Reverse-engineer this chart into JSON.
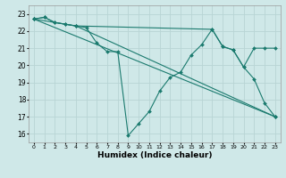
{
  "xlabel": "Humidex (Indice chaleur)",
  "xlim": [
    -0.5,
    23.5
  ],
  "ylim": [
    15.5,
    23.5
  ],
  "yticks": [
    16,
    17,
    18,
    19,
    20,
    21,
    22,
    23
  ],
  "xticks": [
    0,
    1,
    2,
    3,
    4,
    5,
    6,
    7,
    8,
    9,
    10,
    11,
    12,
    13,
    14,
    15,
    16,
    17,
    18,
    19,
    20,
    21,
    22,
    23
  ],
  "bg_color": "#cfe8e8",
  "grid_color": "#b8d4d4",
  "line_color": "#1a7a6e",
  "lines": [
    {
      "x": [
        0,
        1,
        2,
        3,
        4,
        5,
        6,
        7,
        8,
        9,
        10,
        11,
        12,
        13,
        14,
        15,
        16,
        17,
        18,
        19,
        20,
        21,
        22,
        23
      ],
      "y": [
        22.7,
        22.8,
        22.5,
        22.4,
        22.3,
        22.2,
        21.3,
        20.8,
        20.8,
        15.9,
        16.6,
        17.3,
        18.5,
        19.3,
        19.6,
        20.6,
        21.2,
        22.1,
        21.1,
        20.9,
        19.9,
        19.2,
        17.8,
        17.0
      ]
    },
    {
      "x": [
        0,
        1,
        2,
        3,
        4,
        23
      ],
      "y": [
        22.7,
        22.8,
        22.5,
        22.4,
        22.3,
        17.0
      ]
    },
    {
      "x": [
        0,
        23
      ],
      "y": [
        22.7,
        17.0
      ]
    },
    {
      "x": [
        0,
        4,
        17,
        18,
        19,
        20,
        21,
        22,
        23
      ],
      "y": [
        22.7,
        22.3,
        22.1,
        21.1,
        20.9,
        19.9,
        21.0,
        21.0,
        21.0
      ]
    }
  ]
}
